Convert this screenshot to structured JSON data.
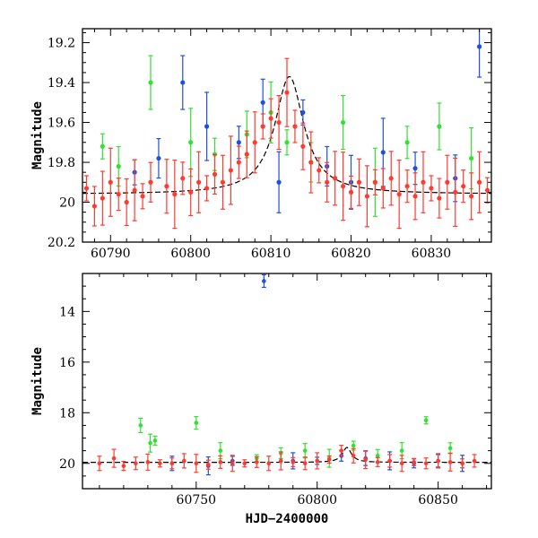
{
  "chart_data": [
    {
      "type": "scatter",
      "title": "",
      "xlabel": "",
      "ylabel": "Magnitude",
      "xlim": [
        60786.5,
        60837.5
      ],
      "ylim": [
        20.2,
        19.13
      ],
      "y_inverted": true,
      "x_ticks": [
        60790,
        60800,
        60810,
        60820,
        60830
      ],
      "y_ticks": [
        19.2,
        19.4,
        19.6,
        19.8,
        20,
        20.2
      ],
      "grid": false,
      "colors": {
        "red": "#ff3b30",
        "green": "#33e033",
        "blue": "#1f4fe0",
        "model": "#000000"
      },
      "series": [
        {
          "color": "red",
          "x": [
            60787,
            60788,
            60789,
            60790,
            60791,
            60792,
            60793,
            60794,
            60795,
            60797,
            60798,
            60799,
            60800,
            60801,
            60802,
            60803,
            60804,
            60805,
            60806,
            60807,
            60808,
            60809,
            60810,
            60811,
            60812,
            60813,
            60814,
            60815,
            60816,
            60817,
            60818,
            60819,
            60820,
            60821,
            60822,
            60823,
            60824,
            60825,
            60826,
            60827,
            60828,
            60829,
            60830,
            60831,
            60832,
            60833,
            60834,
            60835,
            60836,
            60837
          ],
          "y": [
            19.93,
            20.02,
            19.98,
            19.9,
            19.96,
            20.0,
            19.94,
            19.97,
            19.9,
            19.92,
            19.96,
            19.88,
            19.95,
            19.9,
            19.93,
            19.86,
            19.9,
            19.84,
            19.8,
            19.76,
            19.7,
            19.62,
            19.58,
            19.6,
            19.45,
            19.62,
            19.72,
            19.8,
            19.84,
            19.9,
            19.88,
            19.92,
            19.95,
            19.9,
            19.97,
            19.9,
            19.93,
            19.88,
            19.96,
            19.92,
            19.97,
            19.9,
            19.93,
            19.98,
            19.9,
            19.95,
            19.92,
            19.97,
            19.9,
            19.94
          ]
        },
        {
          "color": "green",
          "x": [
            60789,
            60791,
            60795,
            60800,
            60803,
            60807,
            60810,
            60812,
            60815,
            60819,
            60823,
            60827,
            60831,
            60835
          ],
          "y": [
            19.72,
            19.82,
            19.4,
            19.7,
            19.76,
            19.66,
            19.55,
            19.7,
            19.8,
            19.6,
            19.9,
            19.7,
            19.62,
            19.78
          ]
        },
        {
          "color": "blue",
          "x": [
            60793,
            60796,
            60799,
            60802,
            60806,
            60809,
            60811,
            60814,
            60817,
            60820,
            60824,
            60828,
            60833,
            60836
          ],
          "y": [
            19.85,
            19.78,
            19.4,
            19.62,
            19.7,
            19.5,
            19.9,
            19.55,
            19.82,
            19.9,
            19.75,
            19.83,
            19.88,
            19.22
          ]
        }
      ],
      "model_curve": {
        "baseline": 19.96,
        "peak_x": 60812.3,
        "peak_mag": 19.37
      }
    },
    {
      "type": "scatter",
      "title": "",
      "xlabel": "HJD−2400000",
      "ylabel": "Magnitude",
      "xlim": [
        60703,
        60872
      ],
      "ylim": [
        21.0,
        12.5
      ],
      "y_inverted": true,
      "x_ticks": [
        60750,
        60800,
        60850
      ],
      "y_ticks": [
        14,
        16,
        18,
        20
      ],
      "grid": false,
      "colors": {
        "red": "#ff3b30",
        "green": "#33e033",
        "blue": "#1f4fe0",
        "model": "#000000"
      },
      "series": [
        {
          "color": "red",
          "x": [
            60710,
            60716,
            60720,
            60725,
            60730,
            60735,
            60740,
            60745,
            60750,
            60755,
            60760,
            60765,
            60770,
            60775,
            60780,
            60785,
            60790,
            60795,
            60800,
            60805,
            60810,
            60815,
            60820,
            60825,
            60830,
            60835,
            60840,
            60845,
            60850,
            60855,
            60860,
            60865
          ],
          "y": [
            20.0,
            19.8,
            20.1,
            20.0,
            19.95,
            20.0,
            20.0,
            19.9,
            20.0,
            20.05,
            19.95,
            20.0,
            20.0,
            19.95,
            20.0,
            19.9,
            19.95,
            20.0,
            19.9,
            19.85,
            19.5,
            19.7,
            19.85,
            19.95,
            19.9,
            20.0,
            19.95,
            20.0,
            19.9,
            19.95,
            20.0,
            19.9
          ]
        },
        {
          "color": "green",
          "x": [
            60727,
            60731,
            60733,
            60750,
            60760,
            60775,
            60785,
            60795,
            60805,
            60815,
            60825,
            60835,
            60845,
            60855
          ],
          "y": [
            18.5,
            19.2,
            19.1,
            18.4,
            19.5,
            19.8,
            19.6,
            19.5,
            19.8,
            19.3,
            19.7,
            19.5,
            18.3,
            19.4
          ]
        },
        {
          "color": "blue",
          "x": [
            60740,
            60755,
            60765,
            60778,
            60790,
            60800,
            60810,
            60820,
            60830,
            60840,
            60850,
            60860
          ],
          "y": [
            20.0,
            20.1,
            19.9,
            12.8,
            19.9,
            19.9,
            19.7,
            19.8,
            19.9,
            20.0,
            19.9,
            20.0
          ]
        }
      ],
      "model_curve": {
        "baseline": 19.96,
        "peak_x": 60812.3,
        "peak_mag": 19.37
      }
    }
  ]
}
